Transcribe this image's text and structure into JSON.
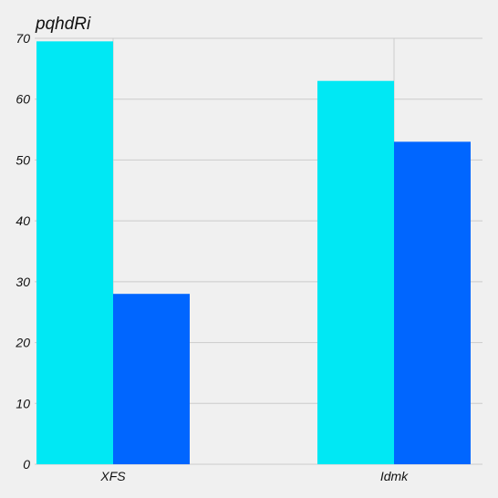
{
  "chart_data": {
    "type": "bar",
    "title": "pqhdRi",
    "xlabel": "",
    "ylabel": "",
    "categories": [
      "XFS",
      "Idmk"
    ],
    "series": [
      {
        "values": [
          69.5,
          63
        ]
      },
      {
        "values": [
          28,
          53
        ]
      }
    ],
    "ylim": [
      0,
      70
    ],
    "yticks": [
      0,
      10,
      20,
      30,
      40,
      50,
      60,
      70
    ],
    "grid": true,
    "colors": [
      "#00e8f4",
      "#0066ff"
    ],
    "background": "#f0f0f0"
  }
}
